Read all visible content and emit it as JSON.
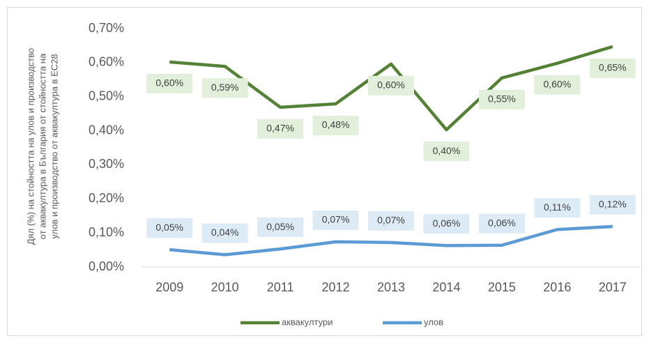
{
  "chart_data": {
    "type": "line",
    "y_label": [
      "Дял (%) на стойността на улов и производство",
      "от аквакултура в България от стойността на",
      "улов и производство от аквакултура в ЕС28"
    ],
    "categories": [
      "2009",
      "2010",
      "2011",
      "2012",
      "2013",
      "2014",
      "2015",
      "2016",
      "2017"
    ],
    "series": [
      {
        "name": "аквакултури",
        "color": "#548235",
        "label_bg": "#e2efda",
        "values": [
          0.602,
          0.589,
          0.469,
          0.479,
          0.596,
          0.403,
          0.555,
          0.598,
          0.647
        ],
        "value_labels": [
          "0,60%",
          "0,59%",
          "0,47%",
          "0,48%",
          "0,60%",
          "0,40%",
          "0,55%",
          "0,60%",
          "0,65%"
        ]
      },
      {
        "name": "улов",
        "color": "#5b9bd5",
        "label_bg": "#ddebf7",
        "values": [
          0.051,
          0.036,
          0.053,
          0.074,
          0.072,
          0.063,
          0.064,
          0.11,
          0.119
        ],
        "value_labels": [
          "0,05%",
          "0,04%",
          "0,05%",
          "0,07%",
          "0,07%",
          "0,06%",
          "0,06%",
          "0,11%",
          "0,12%"
        ]
      }
    ],
    "ylim": [
      0,
      0.7
    ],
    "yticks": [
      {
        "value": 0,
        "label": "0,00%"
      },
      {
        "value": 0.1,
        "label": "0,10%"
      },
      {
        "value": 0.2,
        "label": "0,20%"
      },
      {
        "value": 0.3,
        "label": "0,30%"
      },
      {
        "value": 0.4,
        "label": "0,40%"
      },
      {
        "value": 0.5,
        "label": "0,50%"
      },
      {
        "value": 0.6,
        "label": "0,60%"
      },
      {
        "value": 0.7,
        "label": "0,70%"
      }
    ],
    "grid": false,
    "legend": "bottom"
  }
}
